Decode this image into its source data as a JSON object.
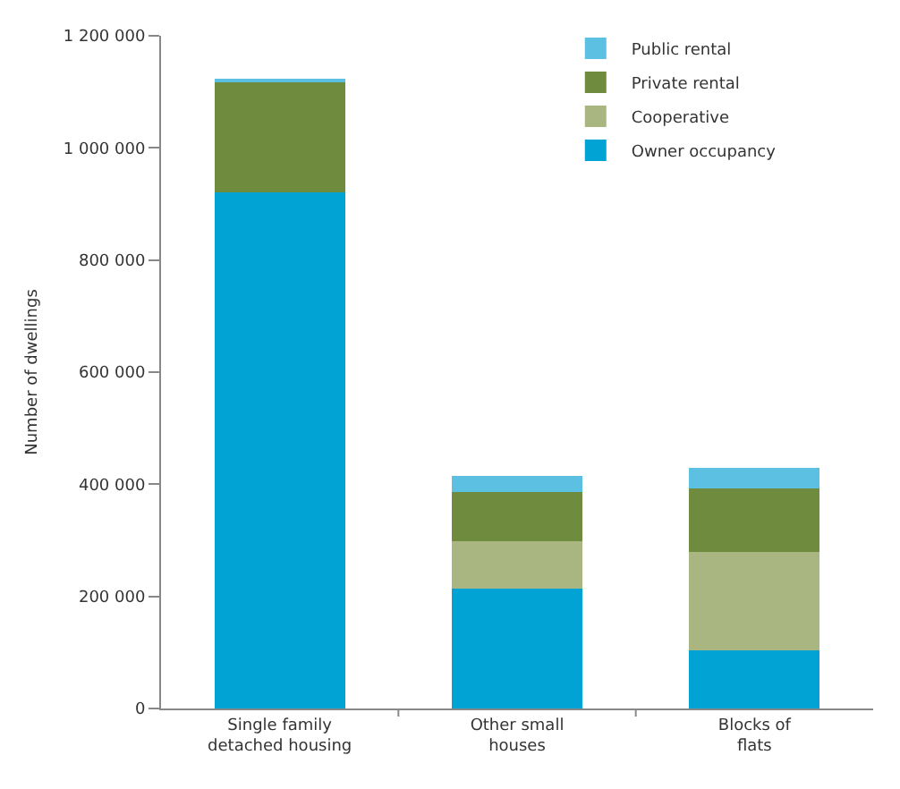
{
  "chart_data": {
    "type": "bar",
    "stacked": true,
    "ylabel": "Number of dwellings",
    "categories": [
      "Single family detached housing",
      "Other small houses",
      "Blocks of flats"
    ],
    "series": [
      {
        "name": "Owner occupancy",
        "color": "#00a3d4",
        "values": [
          920000,
          214000,
          104000
        ]
      },
      {
        "name": "Cooperative",
        "color": "#a9b681",
        "values": [
          0,
          84000,
          176000
        ]
      },
      {
        "name": "Private rental",
        "color": "#6f8b3d",
        "values": [
          198000,
          88000,
          113000
        ]
      },
      {
        "name": "Public rental",
        "color": "#5cc0e2",
        "values": [
          6000,
          29000,
          37000
        ]
      }
    ],
    "ylim": [
      0,
      1200000
    ],
    "yticks": [
      0,
      {
        "value": 200000,
        "label": "200 000"
      },
      {
        "value": 400000,
        "label": "400 000"
      },
      {
        "value": 600000,
        "label": "600 000"
      },
      {
        "value": 800000,
        "label": "800 000"
      },
      {
        "value": 1000000,
        "label": "1 000 000"
      },
      {
        "value": 1200000,
        "label": "1 200 000"
      }
    ],
    "grid": false,
    "legend": "top right"
  }
}
